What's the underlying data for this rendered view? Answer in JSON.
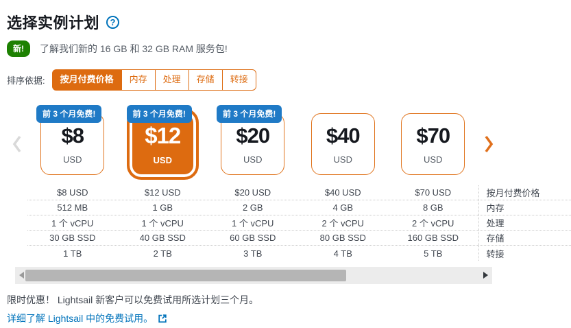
{
  "header": {
    "title": "选择实例计划",
    "help_icon": "?",
    "new_badge": "新!",
    "new_text": "了解我们新的 16 GB 和 32 GB RAM 服务包!"
  },
  "sort": {
    "label": "排序依据:",
    "tabs": [
      {
        "label": "按月付费价格",
        "selected": true
      },
      {
        "label": "内存",
        "selected": false
      },
      {
        "label": "处理",
        "selected": false
      },
      {
        "label": "存储",
        "selected": false
      },
      {
        "label": "转接",
        "selected": false
      }
    ]
  },
  "carousel": {
    "free_badge": "前 3 个月免费!",
    "plans": [
      {
        "price": "$8",
        "currency": "USD",
        "badge": true,
        "selected": false
      },
      {
        "price": "$12",
        "currency": "USD",
        "badge": true,
        "selected": true
      },
      {
        "price": "$20",
        "currency": "USD",
        "badge": true,
        "selected": false
      },
      {
        "price": "$40",
        "currency": "USD",
        "badge": false,
        "selected": false
      },
      {
        "price": "$70",
        "currency": "USD",
        "badge": false,
        "selected": false
      }
    ]
  },
  "table": {
    "rows": [
      {
        "label": "按月付费价格",
        "values": [
          "$8 USD",
          "$12 USD",
          "$20 USD",
          "$40 USD",
          "$70 USD"
        ]
      },
      {
        "label": "内存",
        "values": [
          "512 MB",
          "1 GB",
          "2 GB",
          "4 GB",
          "8 GB"
        ]
      },
      {
        "label": "处理",
        "values": [
          "1 个 vCPU",
          "1 个 vCPU",
          "1 个 vCPU",
          "2 个 vCPU",
          "2 个 vCPU"
        ]
      },
      {
        "label": "存储",
        "values": [
          "30 GB SSD",
          "40 GB SSD",
          "60 GB SSD",
          "80 GB SSD",
          "160 GB SSD"
        ]
      },
      {
        "label": "转接",
        "values": [
          "1 TB",
          "2 TB",
          "3 TB",
          "4 TB",
          "5 TB"
        ]
      }
    ]
  },
  "footer": {
    "offer": "限时优惠！ Lightsail 新客户可以免费试用所选计划三个月。",
    "link": "详细了解 Lightsail 中的免费试用。"
  },
  "colors": {
    "accent_orange": "#dd6b10",
    "card_border_orange": "#e0731c",
    "badge_blue": "#1f7ac6",
    "badge_green": "#1d8102",
    "link_blue": "#0073bb",
    "help_blue": "#0073bb",
    "title_dark": "#16191f",
    "body_gray": "#414750",
    "scroll_track": "#ececec",
    "scroll_thumb": "#b5b5b5"
  }
}
